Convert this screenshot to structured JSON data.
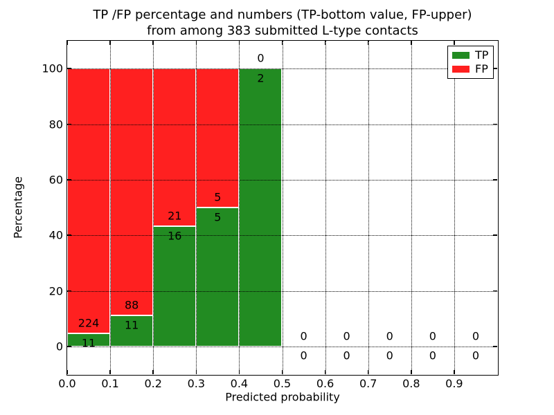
{
  "figure": {
    "background": "#ffffff"
  },
  "chart_data": {
    "type": "bar",
    "stacked": true,
    "title_line1": "TP /FP percentage and numbers (TP-bottom value, FP-upper)",
    "title_line2": "from among 383 submitted L-type contacts",
    "xlabel": "Predicted probability",
    "ylabel": "Percentage",
    "total_contacts": 383,
    "xlim": [
      0.0,
      1.0
    ],
    "ylim": [
      -10,
      110
    ],
    "grid": {
      "style": "dotted",
      "color": "#000000",
      "above_bars": true
    },
    "xticks": [
      {
        "v": 0.0,
        "label": "0.0"
      },
      {
        "v": 0.1,
        "label": "0.1"
      },
      {
        "v": 0.2,
        "label": "0.2"
      },
      {
        "v": 0.3,
        "label": "0.3"
      },
      {
        "v": 0.4,
        "label": "0.4"
      },
      {
        "v": 0.5,
        "label": "0.5"
      },
      {
        "v": 0.6,
        "label": "0.6"
      },
      {
        "v": 0.7,
        "label": "0.7"
      },
      {
        "v": 0.8,
        "label": "0.8"
      },
      {
        "v": 0.9,
        "label": "0.9"
      }
    ],
    "yticks": [
      {
        "v": 0,
        "label": "0"
      },
      {
        "v": 20,
        "label": "20"
      },
      {
        "v": 40,
        "label": "40"
      },
      {
        "v": 60,
        "label": "60"
      },
      {
        "v": 80,
        "label": "80"
      },
      {
        "v": 100,
        "label": "100"
      }
    ],
    "bins": [
      {
        "range": [
          0.0,
          0.1
        ],
        "tp": 11,
        "fp": 224,
        "tp_pct": 4.68
      },
      {
        "range": [
          0.1,
          0.2
        ],
        "tp": 11,
        "fp": 88,
        "tp_pct": 11.11
      },
      {
        "range": [
          0.2,
          0.3
        ],
        "tp": 16,
        "fp": 21,
        "tp_pct": 43.24
      },
      {
        "range": [
          0.3,
          0.4
        ],
        "tp": 5,
        "fp": 5,
        "tp_pct": 50.0
      },
      {
        "range": [
          0.4,
          0.5
        ],
        "tp": 2,
        "fp": 0,
        "tp_pct": 100.0
      },
      {
        "range": [
          0.5,
          0.6
        ],
        "tp": 0,
        "fp": 0,
        "tp_pct": null
      },
      {
        "range": [
          0.6,
          0.7
        ],
        "tp": 0,
        "fp": 0,
        "tp_pct": null
      },
      {
        "range": [
          0.7,
          0.8
        ],
        "tp": 0,
        "fp": 0,
        "tp_pct": null
      },
      {
        "range": [
          0.8,
          0.9
        ],
        "tp": 0,
        "fp": 0,
        "tp_pct": null
      },
      {
        "range": [
          0.9,
          1.0
        ],
        "tp": 0,
        "fp": 0,
        "tp_pct": null
      }
    ],
    "label_offsets": {
      "fp_above_boundary_pct": 3.7,
      "tp_below_boundary_pct": 3.4
    },
    "colors": {
      "tp": "#228B22",
      "fp": "#FF2020",
      "text": "#000000",
      "spine": "#000000"
    },
    "legend": {
      "position": "upper right",
      "items": [
        {
          "label": "TP",
          "color": "#228B22"
        },
        {
          "label": "FP",
          "color": "#FF2020"
        }
      ]
    }
  }
}
